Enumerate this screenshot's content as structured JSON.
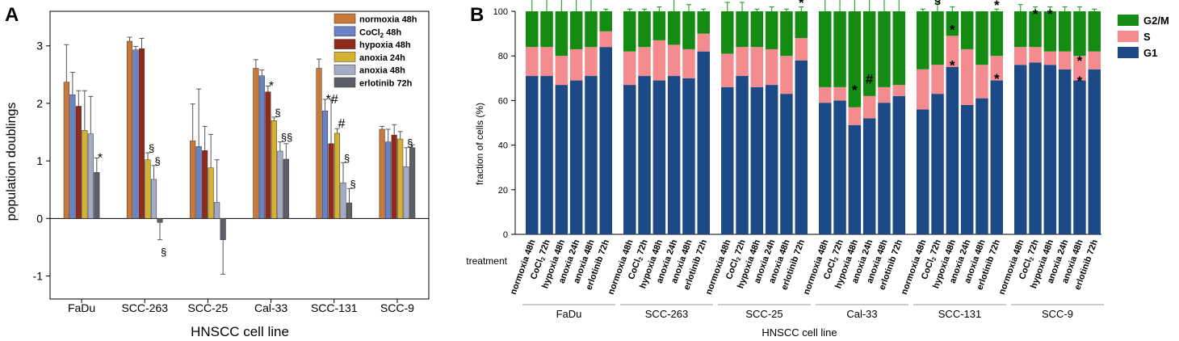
{
  "panel_a_label": "A",
  "panel_b_label": "B",
  "symbols": {
    "sect": "§",
    "hash": "#",
    "star": "*"
  },
  "chart_data": [
    {
      "id": "A",
      "type": "bar",
      "title": "",
      "xlabel": "HNSCC cell line",
      "ylabel": "population doublings",
      "ylim": [
        -1.4,
        3.6
      ],
      "yticks": [
        -1,
        0,
        1,
        2,
        3
      ],
      "categories": [
        "FaDu",
        "SCC-263",
        "SCC-25",
        "Cal-33",
        "SCC-131",
        "SCC-9"
      ],
      "legend_position": "top-right",
      "series": [
        {
          "name": "normoxia 48h",
          "color": "#c97a3a",
          "values": [
            2.37,
            3.08,
            1.35,
            2.61,
            2.61,
            1.55
          ],
          "err": [
            0.65,
            0.07,
            0.64,
            0.15,
            0.16,
            0.05
          ]
        },
        {
          "name": "CoCl2 48h",
          "name_parts": [
            "CoCl",
            "2",
            " 48h"
          ],
          "color": "#6a83c7",
          "values": [
            2.15,
            2.93,
            1.25,
            2.48,
            1.87,
            1.33
          ],
          "err": [
            0.39,
            0.06,
            1.0,
            0.1,
            0.2,
            0.22
          ]
        },
        {
          "name": "hypoxia 48h",
          "color": "#8f2a1c",
          "values": [
            1.95,
            2.95,
            1.18,
            2.2,
            1.3,
            1.45
          ],
          "err": [
            0.27,
            0.18,
            0.42,
            0.1,
            0.77,
            0.18
          ]
        },
        {
          "name": "anoxia 24h",
          "color": "#d3b133",
          "values": [
            1.53,
            1.02,
            0.88,
            1.7,
            1.48,
            1.38
          ],
          "err": [
            0.69,
            0.12,
            0.58,
            0.06,
            0.08,
            0.13
          ]
        },
        {
          "name": "anoxia 48h",
          "color": "#a3acc4",
          "values": [
            1.47,
            0.68,
            0.28,
            1.17,
            0.62,
            0.9
          ],
          "err": [
            0.65,
            0.24,
            0.74,
            0.16,
            0.35,
            0.33
          ]
        },
        {
          "name": "erlotinib 72h",
          "color": "#5c6066",
          "values": [
            0.8,
            -0.07,
            -0.37,
            1.03,
            0.27,
            1.23
          ],
          "err": [
            0.25,
            0.3,
            0.6,
            0.27,
            0.25,
            0.05
          ]
        }
      ],
      "annotations": [
        {
          "text": "*",
          "category": 0,
          "series": 5
        },
        {
          "text": "§",
          "category": 1,
          "series": 3
        },
        {
          "text": "§",
          "category": 1,
          "series": 4
        },
        {
          "text": "§",
          "category": 1,
          "series": 5,
          "below": true
        },
        {
          "text": "*",
          "category": 3,
          "series": 2
        },
        {
          "text": "§",
          "category": 3,
          "series": 3
        },
        {
          "text": "§§",
          "category": 3,
          "series": 4
        },
        {
          "text": "*#",
          "category": 4,
          "series": 1
        },
        {
          "text": "#",
          "category": 4,
          "series": 3
        },
        {
          "text": "§",
          "category": 4,
          "series": 4
        },
        {
          "text": "§",
          "category": 4,
          "series": 5
        },
        {
          "text": "§",
          "category": 5,
          "series": 4
        }
      ]
    },
    {
      "id": "B",
      "type": "bar",
      "stacked": true,
      "title": "",
      "xlabel": "HNSCC cell line",
      "ylabel": "fraction of cells (%)",
      "ylim": [
        0,
        100
      ],
      "yticks": [
        0,
        20,
        40,
        60,
        80,
        100
      ],
      "row_label": "treatment",
      "groups": [
        "FaDu",
        "SCC-263",
        "SCC-25",
        "Cal-33",
        "SCC-131",
        "SCC-9"
      ],
      "treatments": [
        "normoxia 48h",
        "CoCl2 72h",
        "hypoxia 48h",
        "anoxia 24h",
        "anoxia 48h",
        "erlotinib 72h"
      ],
      "legend_position": "right",
      "series": [
        {
          "name": "G1",
          "color": "#1d4a86",
          "values": [
            [
              71,
              71,
              67,
              69,
              71,
              84
            ],
            [
              67,
              71,
              69,
              71,
              70,
              82
            ],
            [
              66,
              71,
              66,
              67,
              63,
              78
            ],
            [
              59,
              60,
              49,
              52,
              59,
              62
            ],
            [
              56,
              63,
              75,
              58,
              61,
              69
            ],
            [
              76,
              77,
              76,
              74,
              69,
              74
            ]
          ],
          "err": [
            [
              0,
              0,
              6,
              0,
              0,
              0
            ],
            [
              2,
              2,
              0,
              0,
              2,
              0
            ],
            [
              6,
              6,
              0,
              3,
              3,
              2
            ],
            [
              0,
              0,
              8,
              0,
              0,
              0
            ],
            [
              1,
              8,
              2,
              4,
              3,
              1
            ],
            [
              2,
              1,
              1,
              0,
              1,
              1
            ]
          ]
        },
        {
          "name": "S",
          "color": "#f48b8f",
          "values": [
            [
              13,
              13,
              13,
              14,
              13,
              7
            ],
            [
              15,
              13,
              18,
              14,
              13,
              8
            ],
            [
              15,
              13,
              18,
              16,
              17,
              10
            ],
            [
              7,
              6,
              8,
              10,
              7,
              5
            ],
            [
              18,
              13,
              14,
              25,
              15,
              11
            ],
            [
              8,
              7,
              6,
              8,
              11,
              8
            ]
          ],
          "err": [
            [
              0,
              0,
              3,
              0,
              0,
              0
            ],
            [
              0,
              0,
              0,
              0,
              0,
              0
            ],
            [
              0,
              0,
              0,
              0,
              0,
              0
            ],
            [
              0,
              0,
              0,
              0,
              0,
              0
            ],
            [
              0,
              0,
              0,
              0,
              0,
              0
            ],
            [
              0,
              0,
              0,
              0,
              0,
              0
            ]
          ]
        },
        {
          "name": "G2/M",
          "color": "#148c14",
          "values": [
            [
              16,
              16,
              20,
              17,
              16,
              9
            ],
            [
              18,
              16,
              13,
              15,
              17,
              10
            ],
            [
              19,
              16,
              16,
              17,
              20,
              12
            ],
            [
              34,
              34,
              43,
              38,
              34,
              33
            ],
            [
              26,
              24,
              11,
              17,
              24,
              20
            ],
            [
              16,
              16,
              18,
              18,
              20,
              18
            ]
          ],
          "err": [
            [
              6,
              6,
              6,
              9,
              6,
              1
            ],
            [
              1,
              1,
              2,
              7,
              3,
              1
            ],
            [
              4,
              4,
              1,
              2,
              1,
              2
            ],
            [
              13,
              13,
              15,
              15,
              14,
              12
            ],
            [
              1,
              4,
              2,
              0,
              0,
              1
            ],
            [
              3,
              2,
              2,
              2,
              2,
              1
            ]
          ]
        }
      ],
      "annotations": [
        {
          "text": "*",
          "group": 2,
          "bar": 5,
          "y": 105
        },
        {
          "text": "*",
          "group": 3,
          "bar": 2,
          "y": 66
        },
        {
          "text": "#",
          "group": 3,
          "bar": 3,
          "y": 69
        },
        {
          "text": "§",
          "group": 4,
          "bar": 1,
          "y": 105
        },
        {
          "text": "*",
          "group": 4,
          "bar": 2,
          "y": 93
        },
        {
          "text": "*",
          "group": 4,
          "bar": 2,
          "y": 77
        },
        {
          "text": "*",
          "group": 4,
          "bar": 5,
          "y": 104
        },
        {
          "text": "*",
          "group": 4,
          "bar": 5,
          "y": 71
        },
        {
          "text": "*",
          "group": 5,
          "bar": 1,
          "y": 100
        },
        {
          "text": "*",
          "group": 5,
          "bar": 2,
          "y": 100
        },
        {
          "text": "*",
          "group": 5,
          "bar": 4,
          "y": 79
        },
        {
          "text": "*",
          "group": 5,
          "bar": 4,
          "y": 70
        }
      ]
    }
  ]
}
